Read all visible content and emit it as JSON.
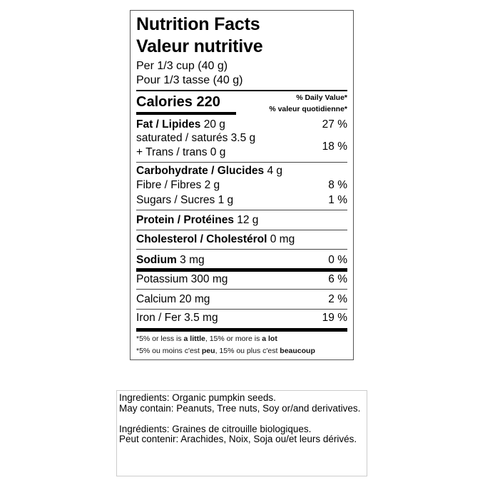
{
  "label": {
    "title_en": "Nutrition Facts",
    "title_fr": "Valeur nutritive",
    "serving_en": "Per 1/3 cup (40 g)",
    "serving_fr": "Pour 1/3 tasse (40 g)",
    "calories_label": "Calories 220",
    "dv_en": "% Daily Value*",
    "dv_fr": "% valeur quotidienne*",
    "fat": {
      "name": "Fat / Lipides",
      "amount": " 20 g",
      "dv": "27 %"
    },
    "saturated": {
      "name": "saturated / saturés 3.5 g"
    },
    "trans": {
      "name": "+ Trans / trans 0 g",
      "dv": "18 %"
    },
    "carb": {
      "name": "Carbohydrate / Glucides",
      "amount": " 4 g"
    },
    "fibre": {
      "name": "Fibre / Fibres 2 g",
      "dv": "8 %"
    },
    "sugars": {
      "name": "Sugars / Sucres 1 g",
      "dv": "1 %"
    },
    "protein": {
      "name": "Protein / Protéines",
      "amount": " 12 g"
    },
    "cholesterol": {
      "name": "Cholesterol / Cholestérol",
      "amount": " 0 mg"
    },
    "sodium": {
      "name": "Sodium",
      "amount": " 3 mg",
      "dv": "0 %"
    },
    "potassium": {
      "name": "Potassium 300 mg",
      "dv": "6 %"
    },
    "calcium": {
      "name": "Calcium 20 mg",
      "dv": "2 %"
    },
    "iron": {
      "name": "Iron / Fer 3.5 mg",
      "dv": "19 %"
    },
    "footnote_en": {
      "a": "*5% or less is ",
      "b": "a little",
      "c": ", 15% or more is ",
      "d": "a lot"
    },
    "footnote_fr": {
      "a": "*5% ou moins c'est ",
      "b": "peu",
      "c": ", 15% ou plus c'est ",
      "d": "beaucoup"
    }
  },
  "ingredients": {
    "en_1": "Ingredients: Organic pumpkin seeds.",
    "en_2": "May contain: Peanuts, Tree nuts, Soy or/and derivatives.",
    "fr_1": "Ingrédients: Graines de citrouille biologiques.",
    "fr_2": "Peut contenir: Arachides, Noix, Soja ou/et leurs dérivés."
  }
}
